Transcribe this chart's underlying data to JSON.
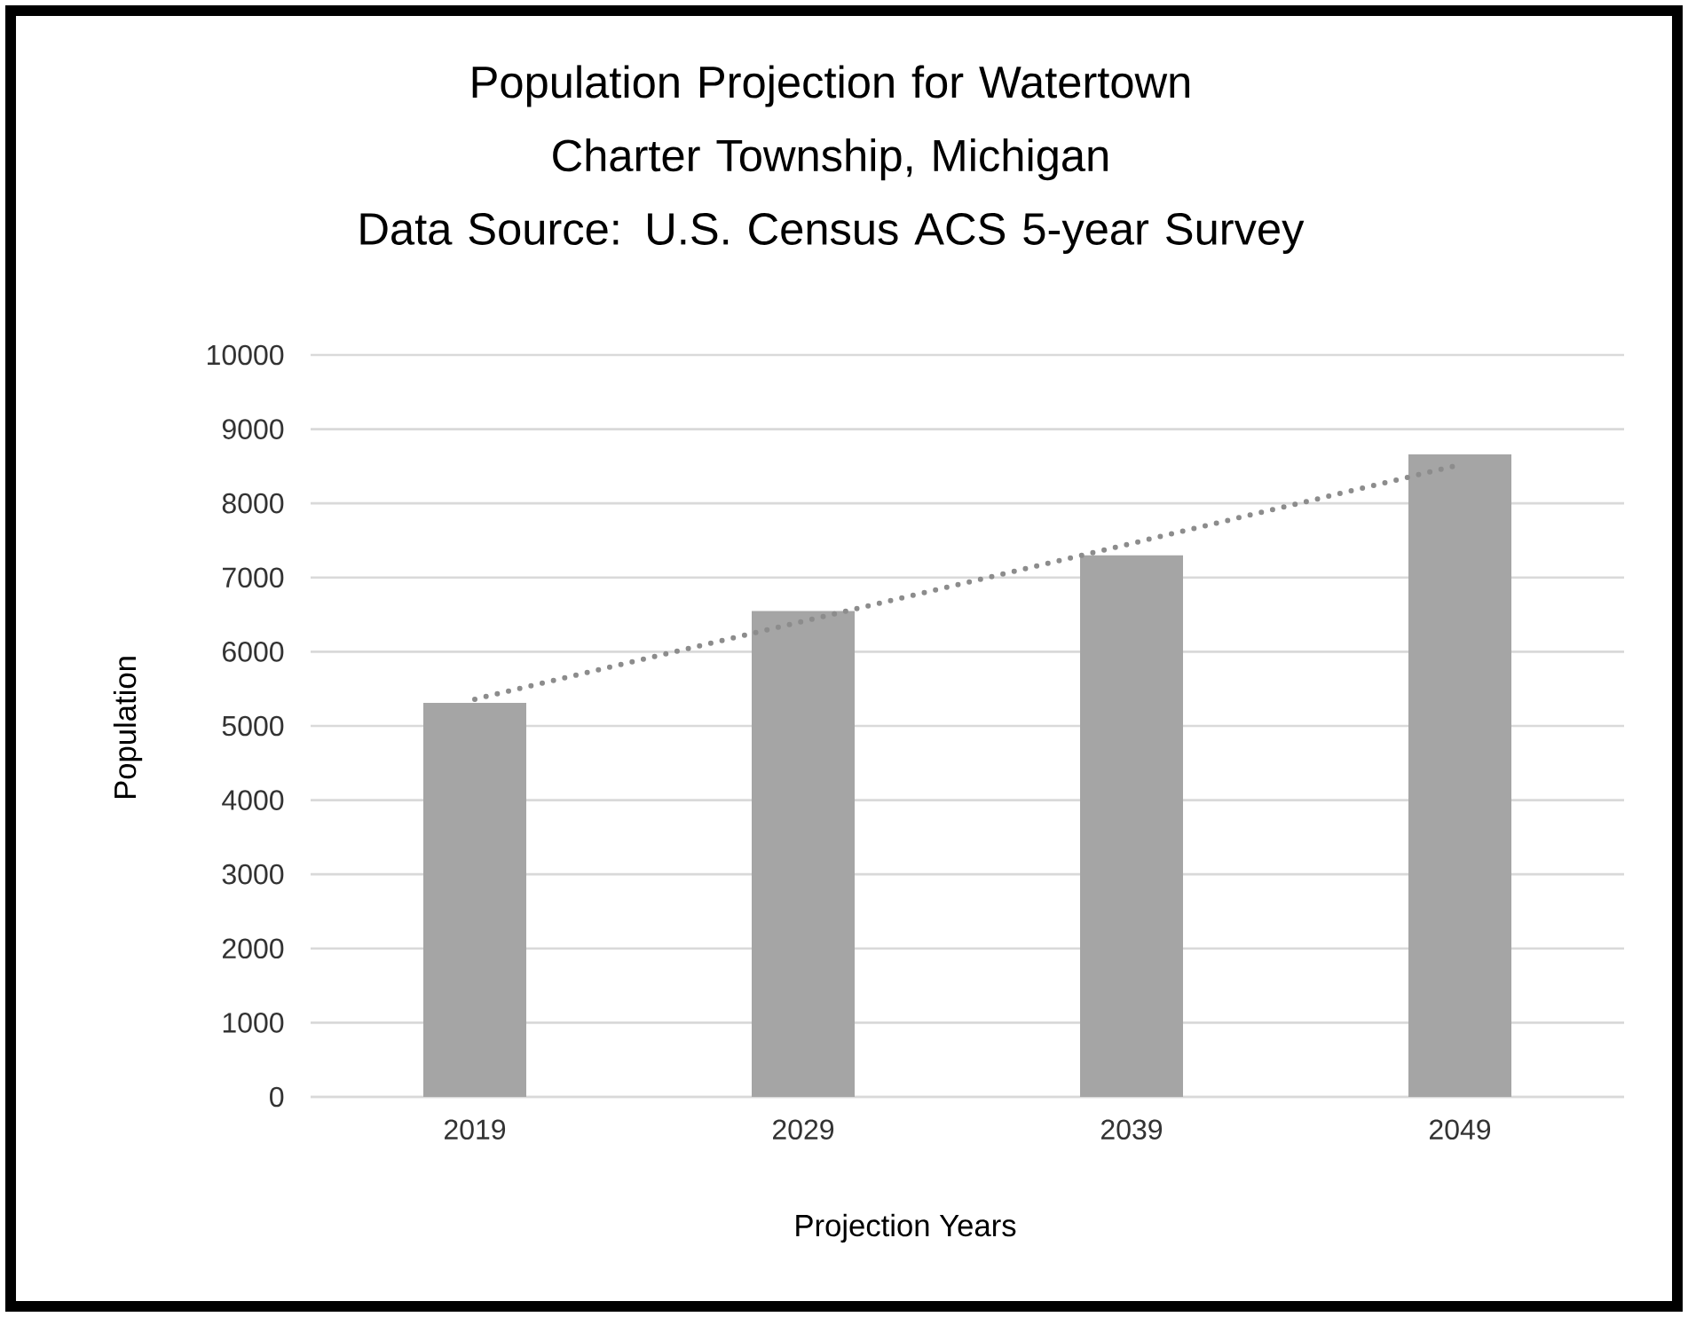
{
  "chart_data": {
    "type": "bar",
    "title": "Population Projection for Watertown Charter Township, Michigan",
    "subtitle": "Data Source: U.S. Census ACS 5-year Survey",
    "xlabel": "Projection Years",
    "ylabel": "Population",
    "categories": [
      "2019",
      "2029",
      "2039",
      "2049"
    ],
    "series": [
      {
        "color": "#a5a5a5",
        "values": [
          5310,
          6550,
          7300,
          8660
        ]
      },
      {
        "type": "line",
        "color": "#8c8c8c",
        "line_style": "dotted",
        "marker": "none",
        "values": [
          5360,
          6410,
          7460,
          8520
        ]
      }
    ],
    "ylim": [
      0,
      10000
    ],
    "yticks": [
      0,
      1000,
      2000,
      3000,
      4000,
      5000,
      6000,
      7000,
      8000,
      9000,
      10000
    ],
    "grid": "y"
  }
}
